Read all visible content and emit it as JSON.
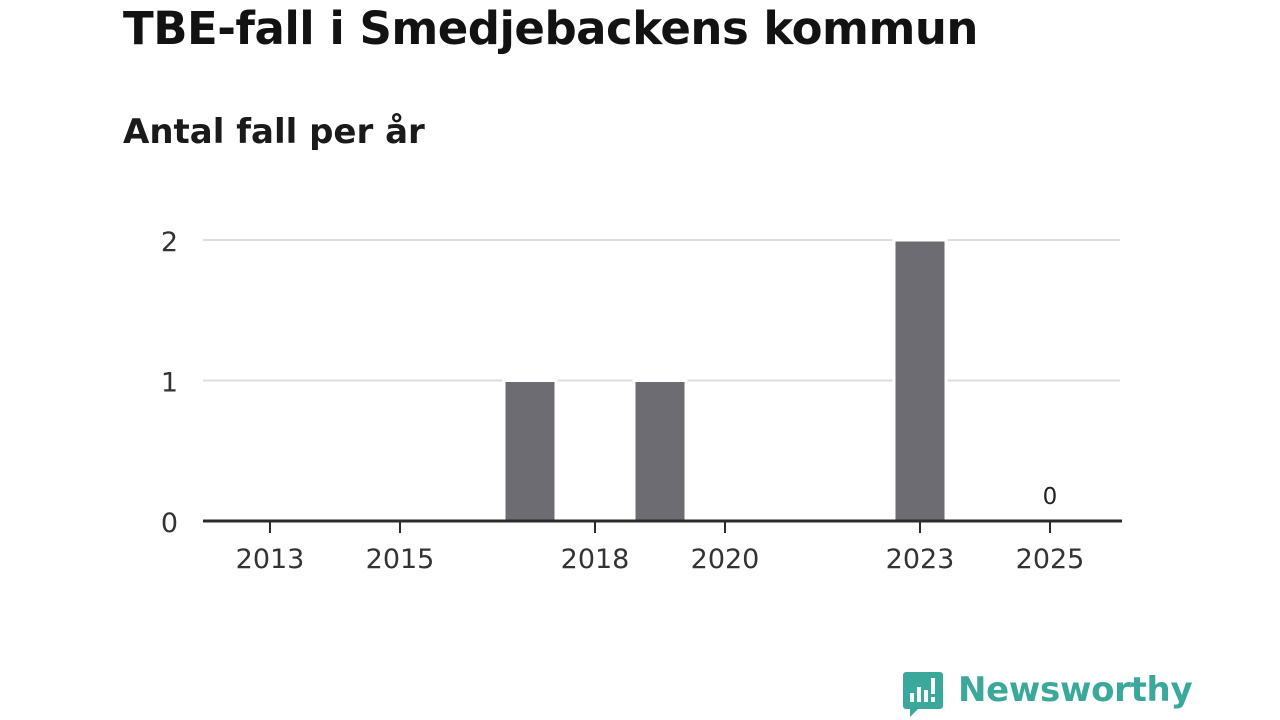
{
  "title": "TBE-fall i Smedjebackens kommun",
  "subtitle": "Antal fall per år",
  "brand": {
    "name": "Newsworthy",
    "logo_icon": "newsworthy-logo-icon",
    "color": "#3aa89a"
  },
  "chart_data": {
    "type": "bar",
    "title": "TBE-fall i Smedjebackens kommun",
    "subtitle": "Antal fall per år",
    "xlabel": "",
    "ylabel": "",
    "categories": [
      "2013",
      "2014",
      "2015",
      "2016",
      "2017",
      "2018",
      "2019",
      "2020",
      "2021",
      "2022",
      "2023",
      "2024",
      "2025"
    ],
    "values": [
      0,
      0,
      0,
      0,
      1,
      0,
      1,
      0,
      0,
      0,
      2,
      0,
      0
    ],
    "x_tick_labels": [
      "2013",
      "2015",
      "2018",
      "2020",
      "2023",
      "2025"
    ],
    "y_ticks": [
      "0",
      "1",
      "2"
    ],
    "ylim": [
      0,
      2
    ],
    "grid": true,
    "bar_color": "#6d6c72",
    "annotations": [
      {
        "category": "2025",
        "text": "0"
      }
    ]
  }
}
